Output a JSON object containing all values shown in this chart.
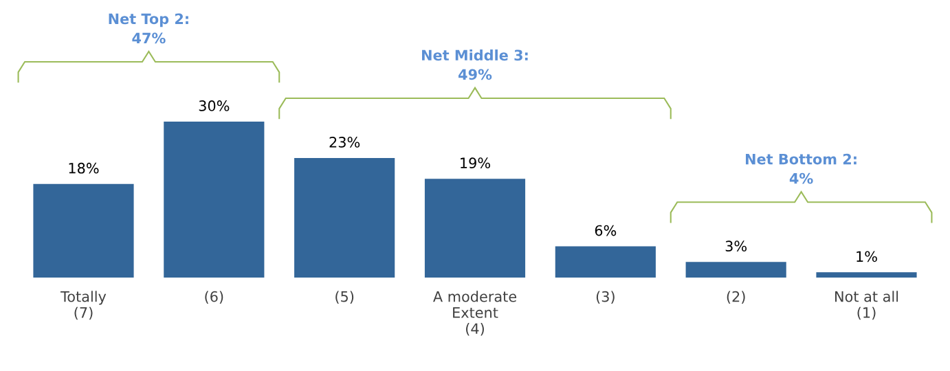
{
  "chart_data": {
    "type": "bar",
    "categories": [
      "Totally\n(7)",
      "(6)",
      "(5)",
      "A moderate\nExtent\n(4)",
      "(3)",
      "(2)",
      "Not at all\n(1)"
    ],
    "values": [
      18,
      30,
      23,
      19,
      6,
      3,
      1
    ],
    "value_labels": [
      "18%",
      "30%",
      "23%",
      "19%",
      "6%",
      "3%",
      "1%"
    ],
    "color": "#336699",
    "annotations": [
      "Net Top 2:\n47%",
      "Net Middle 3:\n49%",
      "Net Bottom 2:\n4%"
    ],
    "grid": false,
    "legend": false
  }
}
